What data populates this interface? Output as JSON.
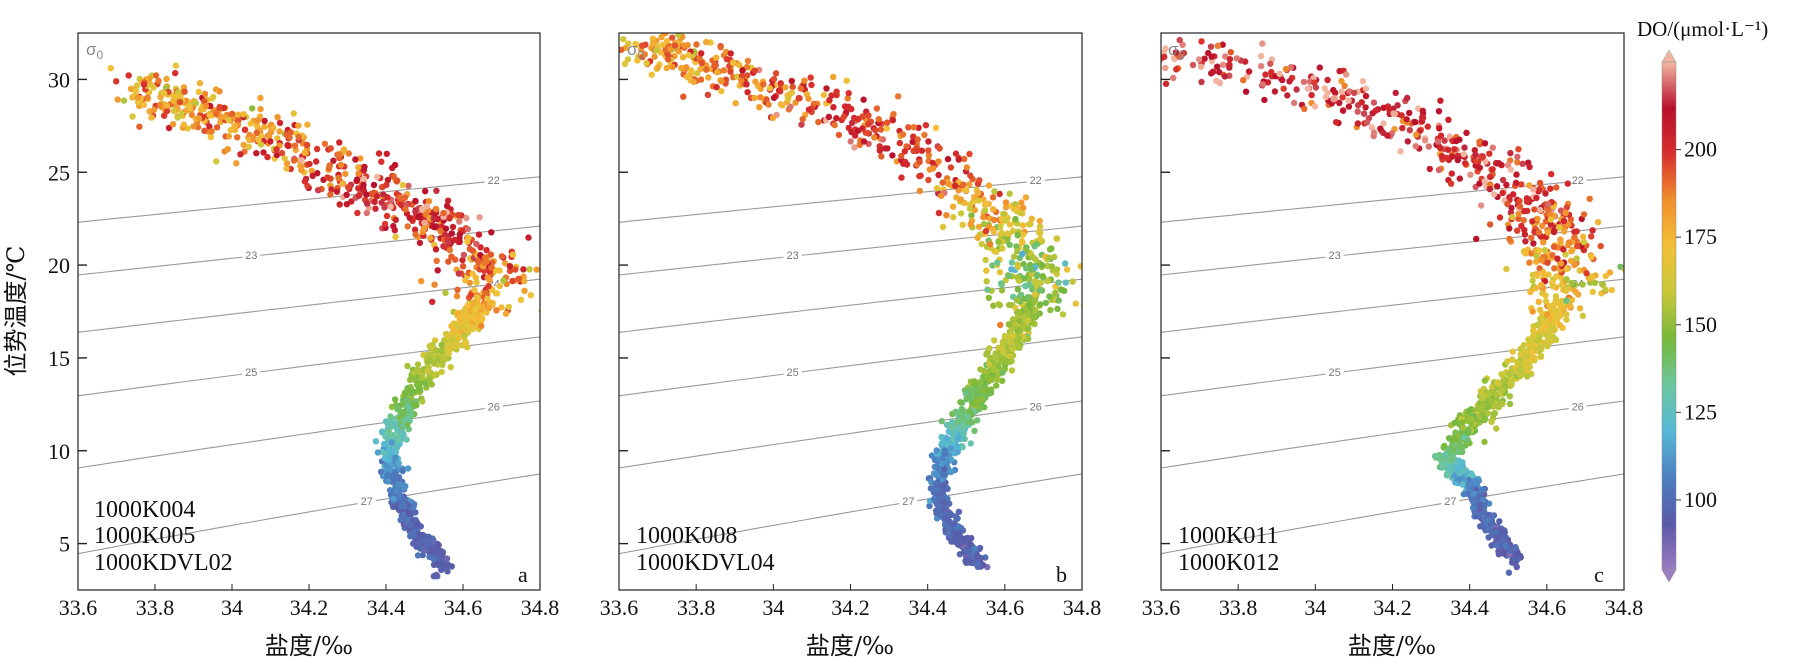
{
  "chart_data": [
    {
      "type": "scatter",
      "panel": "a",
      "xlabel": "盐度/‰",
      "ylabel": "位势温度/℃",
      "xlim": [
        33.6,
        34.8
      ],
      "ylim": [
        2.5,
        32.5
      ],
      "xticks": [
        "33.6",
        "33.8",
        "34",
        "34.2",
        "34.4",
        "34.6",
        "34.8"
      ],
      "yticks": [
        "5",
        "10",
        "15",
        "20",
        "25",
        "30"
      ],
      "stations": [
        "1000K004",
        "1000K005",
        "1000KDVL02"
      ],
      "isopycnal_labels": [
        "22",
        "23",
        "24",
        "25",
        "26",
        "27"
      ],
      "sigma_label": "σ",
      "sigma_sub": "0",
      "profile": [
        {
          "s": 34.55,
          "t": 3.8,
          "do": 95
        },
        {
          "s": 34.48,
          "t": 5.5,
          "do": 98
        },
        {
          "s": 34.43,
          "t": 7.5,
          "do": 102
        },
        {
          "s": 34.41,
          "t": 9.5,
          "do": 115
        },
        {
          "s": 34.43,
          "t": 11.5,
          "do": 135
        },
        {
          "s": 34.48,
          "t": 13.5,
          "do": 150
        },
        {
          "s": 34.55,
          "t": 15.5,
          "do": 160
        },
        {
          "s": 34.62,
          "t": 17.0,
          "do": 172
        },
        {
          "s": 34.66,
          "t": 18.5,
          "do": 178
        },
        {
          "s": 34.65,
          "t": 20.0,
          "do": 190
        },
        {
          "s": 34.56,
          "t": 21.8,
          "do": 200
        },
        {
          "s": 34.42,
          "t": 23.5,
          "do": 210
        },
        {
          "s": 34.25,
          "t": 25.3,
          "do": 195
        },
        {
          "s": 34.05,
          "t": 27.2,
          "do": 185
        },
        {
          "s": 33.9,
          "t": 28.5,
          "do": 180
        },
        {
          "s": 33.75,
          "t": 29.4,
          "do": 178
        }
      ]
    },
    {
      "type": "scatter",
      "panel": "b",
      "xlabel": "盐度/‰",
      "xlim": [
        33.6,
        34.8
      ],
      "ylim": [
        2.5,
        32.5
      ],
      "xticks": [
        "33.6",
        "33.8",
        "34",
        "34.2",
        "34.4",
        "34.6",
        "34.8"
      ],
      "stations": [
        "1000K008",
        "1000KDVL04"
      ],
      "isopycnal_labels": [
        "22",
        "23",
        "24",
        "25",
        "26",
        "27"
      ],
      "sigma_label": "σ",
      "sigma_sub": "0",
      "profile": [
        {
          "s": 34.53,
          "t": 3.9,
          "do": 95
        },
        {
          "s": 34.47,
          "t": 5.6,
          "do": 97
        },
        {
          "s": 34.43,
          "t": 7.5,
          "do": 100
        },
        {
          "s": 34.44,
          "t": 9.6,
          "do": 110
        },
        {
          "s": 34.49,
          "t": 11.6,
          "do": 135
        },
        {
          "s": 34.55,
          "t": 13.8,
          "do": 148
        },
        {
          "s": 34.62,
          "t": 16.0,
          "do": 158
        },
        {
          "s": 34.67,
          "t": 18.0,
          "do": 150
        },
        {
          "s": 34.67,
          "t": 19.8,
          "do": 145
        },
        {
          "s": 34.6,
          "t": 22.0,
          "do": 165
        },
        {
          "s": 34.48,
          "t": 24.5,
          "do": 190
        },
        {
          "s": 34.3,
          "t": 27.0,
          "do": 200
        },
        {
          "s": 34.05,
          "t": 29.2,
          "do": 195
        },
        {
          "s": 33.8,
          "t": 31.0,
          "do": 185
        },
        {
          "s": 33.65,
          "t": 31.8,
          "do": 178
        }
      ]
    },
    {
      "type": "scatter",
      "panel": "c",
      "xlabel": "盐度/‰",
      "xlim": [
        33.6,
        34.8
      ],
      "ylim": [
        2.5,
        32.5
      ],
      "xticks": [
        "33.6",
        "33.8",
        "34",
        "34.2",
        "34.4",
        "34.6",
        "34.8"
      ],
      "stations": [
        "1000K011",
        "1000K012"
      ],
      "isopycnal_labels": [
        "22",
        "23",
        "24",
        "25",
        "26",
        "27"
      ],
      "sigma_label": "σ",
      "sigma_sub": "0",
      "profile": [
        {
          "s": 34.53,
          "t": 4.1,
          "do": 95
        },
        {
          "s": 34.45,
          "t": 6.0,
          "do": 98
        },
        {
          "s": 34.41,
          "t": 8.0,
          "do": 105
        },
        {
          "s": 34.34,
          "t": 9.4,
          "do": 135
        },
        {
          "s": 34.4,
          "t": 11.5,
          "do": 150
        },
        {
          "s": 34.5,
          "t": 13.8,
          "do": 158
        },
        {
          "s": 34.6,
          "t": 16.5,
          "do": 165
        },
        {
          "s": 34.66,
          "t": 19.0,
          "do": 172
        },
        {
          "s": 34.62,
          "t": 21.5,
          "do": 190
        },
        {
          "s": 34.55,
          "t": 24.0,
          "do": 205
        },
        {
          "s": 34.3,
          "t": 27.0,
          "do": 210
        },
        {
          "s": 34.0,
          "t": 29.5,
          "do": 212
        },
        {
          "s": 33.6,
          "t": 31.5,
          "do": 210
        }
      ]
    }
  ],
  "colorbar": {
    "title": "DO/(μmol·L⁻¹)",
    "ticks": [
      "100",
      "125",
      "150",
      "175",
      "200"
    ],
    "range": [
      80,
      225
    ],
    "tick_values": [
      100,
      125,
      150,
      175,
      200
    ],
    "colors": [
      "#9b7cc0",
      "#5a5aa8",
      "#4c7fc0",
      "#56b8d6",
      "#6cc6a0",
      "#76b83a",
      "#c8c83a",
      "#f2c038",
      "#f0902c",
      "#d8302c",
      "#b8102c",
      "#f2b6a0"
    ]
  }
}
